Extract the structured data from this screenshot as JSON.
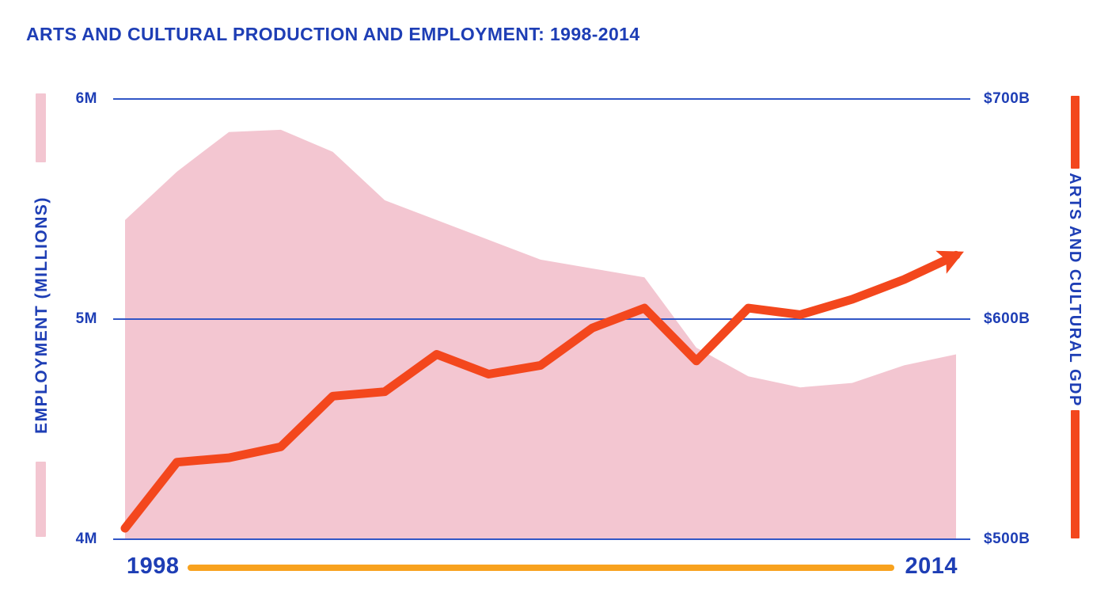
{
  "title": "ARTS AND CULTURAL PRODUCTION AND EMPLOYMENT: 1998-2014",
  "colors": {
    "text_blue": "#1e3eb5",
    "gridline_blue": "#3156c6",
    "employment_pink": "#f3c6d1",
    "gdp_orange": "#f3471d",
    "timeline_orange": "#f8a21e",
    "background": "#ffffff"
  },
  "chart_data": {
    "type": "line",
    "title": "ARTS AND CULTURAL PRODUCTION AND EMPLOYMENT: 1998-2014",
    "x": [
      1998,
      1999,
      2000,
      2001,
      2002,
      2003,
      2004,
      2005,
      2006,
      2007,
      2008,
      2009,
      2010,
      2011,
      2012,
      2013,
      2014
    ],
    "series": [
      {
        "name": "Employment (millions)",
        "render": "area",
        "axis": "left",
        "color": "#f3c6d1",
        "values": [
          5.45,
          5.67,
          5.85,
          5.86,
          5.76,
          5.54,
          5.45,
          5.36,
          5.27,
          5.23,
          5.19,
          4.87,
          4.74,
          4.69,
          4.71,
          4.79,
          4.84
        ]
      },
      {
        "name": "Arts and cultural GDP ($ billions)",
        "render": "line-with-arrow",
        "axis": "right",
        "color": "#f3471d",
        "values": [
          505,
          535,
          537,
          542,
          565,
          567,
          584,
          575,
          579,
          596,
          605,
          581,
          605,
          602,
          609,
          618,
          629
        ]
      }
    ],
    "left_axis": {
      "label": "EMPLOYMENT (MILLIONS)",
      "ticks": [
        "6M",
        "5M",
        "4M"
      ],
      "range": [
        4,
        6
      ]
    },
    "right_axis": {
      "label": "ARTS AND CULTURAL GDP",
      "ticks": [
        "$700B",
        "$600B",
        "$500B"
      ],
      "range": [
        500,
        700
      ]
    },
    "x_axis": {
      "start_label": "1998",
      "end_label": "2014"
    },
    "grid": "horizontal, at left ticks 6M/5M/4M aligned with right ticks $700B/$600B/$500B",
    "legend_position": "none (axis labels act as legend)"
  }
}
